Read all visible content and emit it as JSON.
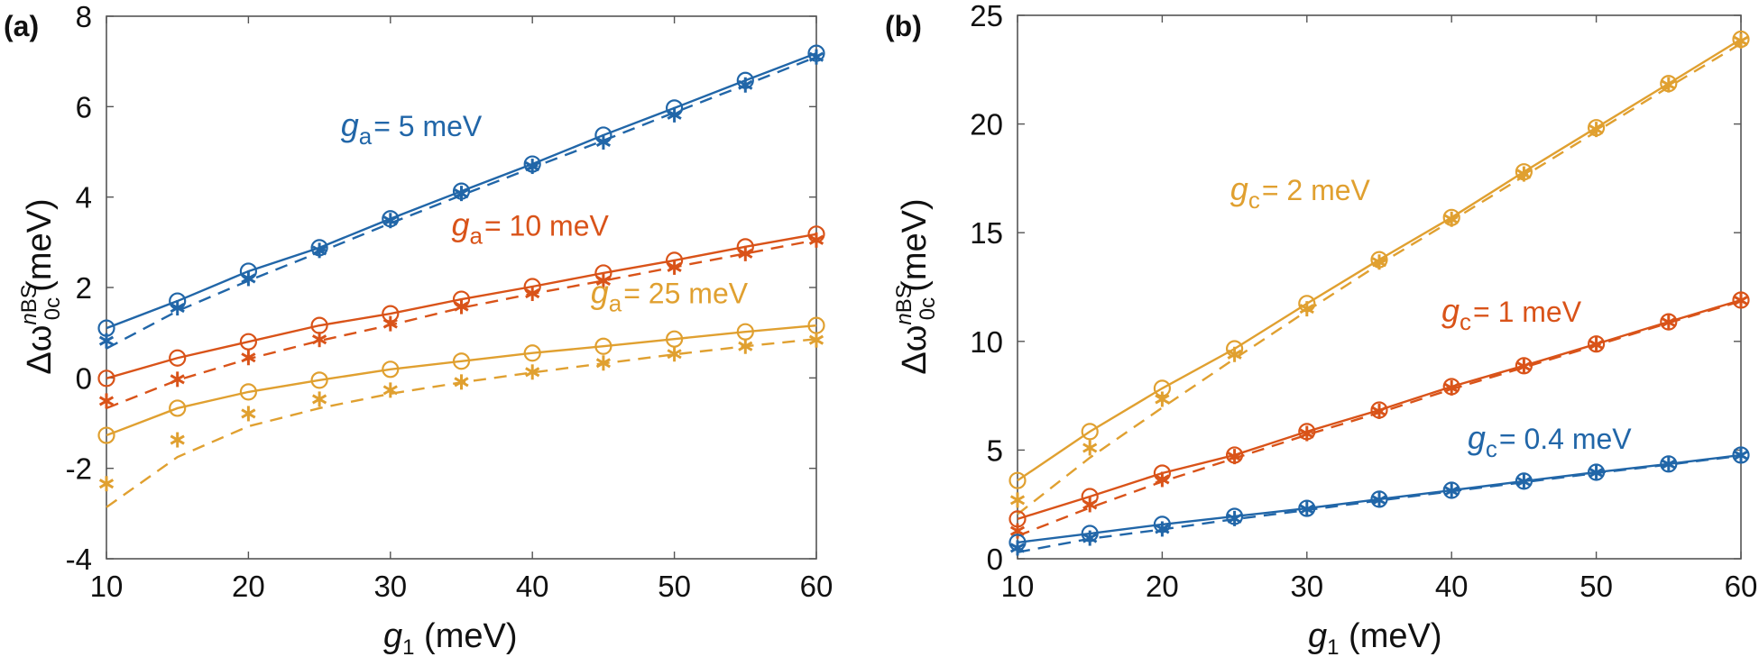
{
  "chart_data": [
    {
      "panel_label": "(a)",
      "type": "line",
      "title": "",
      "xlabel_var": "g",
      "xlabel_sub": "1",
      "xlabel_unit": " (meV)",
      "ylabel_prefix": "Δω",
      "ylabel_sub": "0c",
      "ylabel_sup_ital": "n",
      "ylabel_sup": "BS",
      "ylabel_unit": "(meV)",
      "xlim": [
        10,
        60
      ],
      "ylim": [
        -4,
        8
      ],
      "xticks": [
        10,
        20,
        30,
        40,
        50,
        60
      ],
      "yticks": [
        -4,
        -2,
        0,
        2,
        4,
        6,
        8
      ],
      "grid": false,
      "x": [
        10,
        15,
        20,
        25,
        30,
        35,
        40,
        45,
        50,
        55,
        60
      ],
      "series": [
        {
          "name": "ga = 5 meV",
          "label_var": "g",
          "label_sub": "a",
          "label_rest": "= 5 meV",
          "color": "#2166A8",
          "label_at": [
            26.5,
            5.35
          ],
          "solid_circles": [
            1.1,
            1.7,
            2.36,
            2.88,
            3.52,
            4.13,
            4.73,
            5.37,
            5.97,
            6.58,
            7.18
          ],
          "dashed_line": [
            0.65,
            1.48,
            2.15,
            2.78,
            3.42,
            4.04,
            4.65,
            5.25,
            5.87,
            6.48,
            7.1
          ],
          "stars": [
            0.82,
            1.55,
            2.2,
            2.82,
            3.48,
            4.08,
            4.68,
            5.22,
            5.82,
            6.48,
            7.1
          ]
        },
        {
          "name": "ga = 10 meV",
          "label_var": "g",
          "label_sub": "a",
          "label_rest": "= 10 meV",
          "color": "#D95319",
          "label_at": [
            34.3,
            3.15
          ],
          "solid_circles": [
            -0.01,
            0.44,
            0.8,
            1.16,
            1.42,
            1.74,
            2.02,
            2.32,
            2.6,
            2.9,
            3.18
          ],
          "dashed_line": [
            -0.67,
            -0.05,
            0.42,
            0.82,
            1.17,
            1.55,
            1.86,
            2.15,
            2.45,
            2.75,
            3.05
          ],
          "stars": [
            -0.51,
            -0.03,
            0.45,
            0.85,
            1.2,
            1.58,
            1.87,
            2.15,
            2.45,
            2.75,
            3.05
          ]
        },
        {
          "name": "ga = 25 meV",
          "label_var": "g",
          "label_sub": "a",
          "label_rest": "= 25 meV",
          "color": "#E0A030",
          "label_at": [
            44.1,
            1.65
          ],
          "solid_circles": [
            -1.27,
            -0.67,
            -0.31,
            -0.05,
            0.19,
            0.37,
            0.55,
            0.7,
            0.86,
            1.02,
            1.16
          ],
          "dashed_line": [
            -2.86,
            -1.75,
            -1.07,
            -0.67,
            -0.35,
            -0.1,
            0.12,
            0.32,
            0.52,
            0.7,
            0.86
          ],
          "stars": [
            -2.34,
            -1.37,
            -0.79,
            -0.47,
            -0.27,
            -0.09,
            0.13,
            0.33,
            0.53,
            0.7,
            0.84
          ]
        }
      ]
    },
    {
      "panel_label": "(b)",
      "type": "line",
      "title": "",
      "xlabel_var": "g",
      "xlabel_sub": "1",
      "xlabel_unit": " (meV)",
      "ylabel_prefix": "Δω",
      "ylabel_sub": "0c",
      "ylabel_sup_ital": "n",
      "ylabel_sup": "BS",
      "ylabel_unit": "(meV)",
      "xlim": [
        10,
        60
      ],
      "ylim": [
        0,
        25
      ],
      "xticks": [
        10,
        20,
        30,
        40,
        50,
        60
      ],
      "yticks": [
        0,
        5,
        10,
        15,
        20,
        25
      ],
      "grid": false,
      "x": [
        10,
        15,
        20,
        25,
        30,
        35,
        40,
        45,
        50,
        55,
        60
      ],
      "series": [
        {
          "name": "gc = 2 meV",
          "label_var": "g",
          "label_sub": "c",
          "label_rest": "= 2 meV",
          "color": "#E0A030",
          "label_at": [
            24.7,
            16.5
          ],
          "solid_circles": [
            3.6,
            5.85,
            7.84,
            9.66,
            11.74,
            13.76,
            15.7,
            17.8,
            19.83,
            21.86,
            23.9
          ],
          "dashed_line": [
            2.05,
            4.65,
            6.95,
            9.2,
            11.4,
            13.55,
            15.55,
            17.6,
            19.65,
            21.7,
            23.7
          ],
          "stars": [
            2.7,
            5.1,
            7.34,
            9.4,
            11.5,
            13.65,
            15.62,
            17.7,
            19.75,
            21.8,
            23.82
          ]
        },
        {
          "name": "gc = 1 meV",
          "label_var": "g",
          "label_sub": "c",
          "label_rest": "= 1 meV",
          "color": "#D95319",
          "label_at": [
            39.3,
            10.9
          ],
          "solid_circles": [
            1.83,
            2.86,
            3.94,
            4.77,
            5.85,
            6.84,
            7.92,
            8.88,
            9.88,
            10.9,
            11.9
          ],
          "dashed_line": [
            1.05,
            2.35,
            3.55,
            4.62,
            5.7,
            6.72,
            7.8,
            8.8,
            9.82,
            10.85,
            11.85
          ],
          "stars": [
            1.28,
            2.49,
            3.65,
            4.7,
            5.76,
            6.78,
            7.86,
            8.85,
            9.85,
            10.88,
            11.88
          ]
        },
        {
          "name": "gc = 0.4 meV",
          "label_var": "g",
          "label_sub": "c",
          "label_rest": "= 0.4 meV",
          "color": "#2166A8",
          "label_at": [
            41.1,
            5.05
          ],
          "solid_circles": [
            0.75,
            1.16,
            1.58,
            1.95,
            2.32,
            2.74,
            3.15,
            3.57,
            3.98,
            4.36,
            4.77
          ],
          "dashed_line": [
            0.3,
            0.92,
            1.35,
            1.82,
            2.24,
            2.68,
            3.1,
            3.52,
            3.94,
            4.33,
            4.74
          ],
          "stars": [
            0.5,
            0.95,
            1.37,
            1.85,
            2.28,
            2.7,
            3.12,
            3.55,
            3.96,
            4.35,
            4.76
          ]
        }
      ]
    }
  ]
}
